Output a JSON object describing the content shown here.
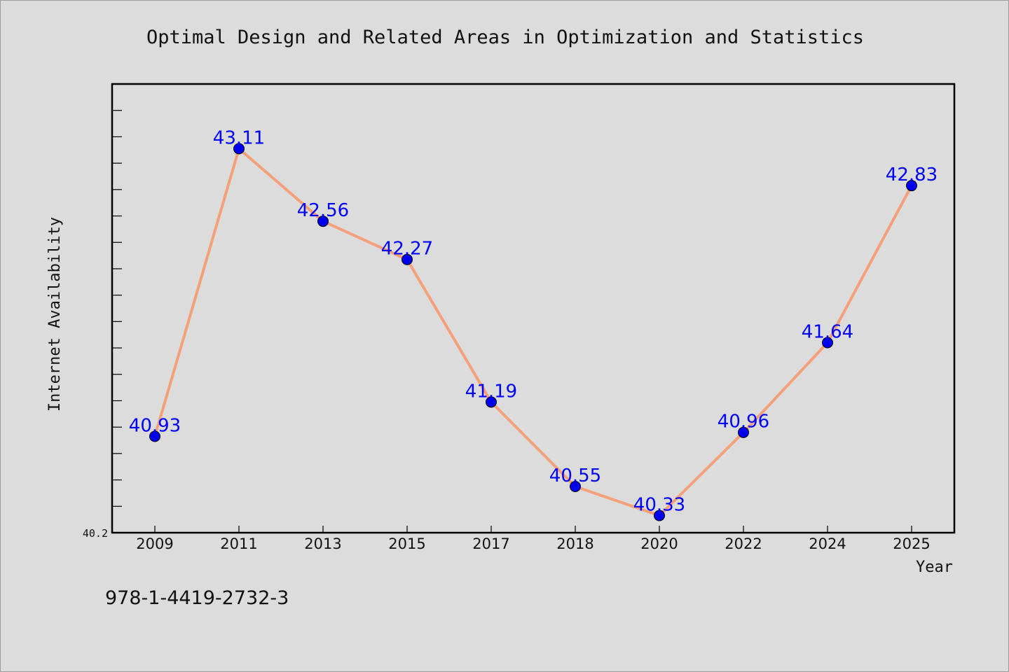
{
  "chart_data": {
    "type": "line",
    "title": "Optimal Design and Related Areas in Optimization and Statistics",
    "xlabel": "Year",
    "ylabel": "Internet Availability",
    "categories": [
      "2009",
      "2011",
      "2013",
      "2015",
      "2017",
      "2018",
      "2020",
      "2022",
      "2024",
      "2025"
    ],
    "series": [
      {
        "values": [
          40.93,
          43.11,
          42.56,
          42.27,
          41.19,
          40.55,
          40.33,
          40.96,
          41.64,
          42.83
        ],
        "labels": [
          "40.93",
          "43.11",
          "42.56",
          "42.27",
          "41.19",
          "40.55",
          "40.33",
          "40.96",
          "41.64",
          "42.83"
        ],
        "line_color": "#f4a07a",
        "marker_color": "#0000ee"
      }
    ],
    "y_tick_label": "40.2",
    "ylim": [
      40.2,
      43.6
    ],
    "grid": false,
    "background": "#dcdcdc"
  },
  "footer_text": "978-1-4419-2732-3"
}
